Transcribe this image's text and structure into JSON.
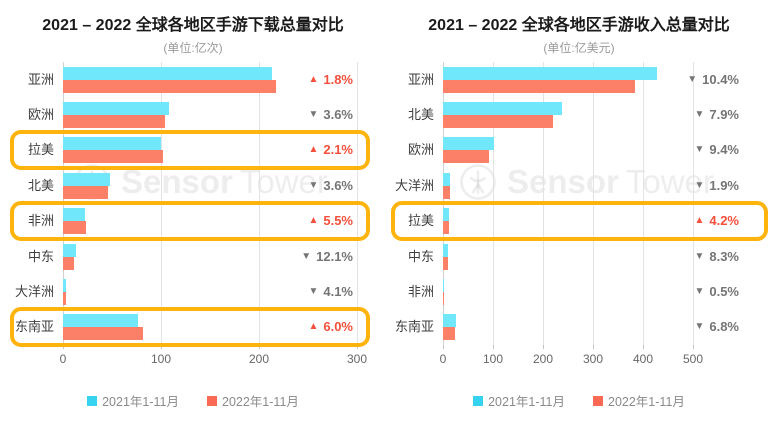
{
  "colors": {
    "up": "#F4503C",
    "down": "#757575",
    "highlight": "#FFB40D",
    "bar_2021": "#70E7FA",
    "bar_2022": "#FC8067",
    "legend_2021": "#35D3F0",
    "legend_2022": "#F96953"
  },
  "watermark": {
    "sensor": "Sensor",
    "tower": "Tower"
  },
  "legend": {
    "items": [
      {
        "label": "2021年1-11月",
        "color": "#35D3F0"
      },
      {
        "label": "2022年1-11月",
        "color": "#F96953"
      }
    ]
  },
  "chart_data": [
    {
      "type": "bar",
      "orientation": "horizontal",
      "title": "2021 – 2022 全球各地区手游下载总量对比",
      "subtitle": "(单位:亿次)",
      "unit": "亿次",
      "categories": [
        "亚洲",
        "欧洲",
        "拉美",
        "北美",
        "非洲",
        "中东",
        "大洋洲",
        "东南亚"
      ],
      "series": [
        {
          "name": "2021年1-11月",
          "color": "#70E7FA",
          "values": [
            213,
            108,
            100,
            48,
            22,
            13,
            3,
            77
          ]
        },
        {
          "name": "2022年1-11月",
          "color": "#FC8067",
          "values": [
            217,
            104,
            102,
            46,
            23.2,
            11.4,
            2.9,
            81.6
          ]
        }
      ],
      "changes": [
        {
          "direction": "up",
          "value": "1.8%"
        },
        {
          "direction": "down",
          "value": "3.6%"
        },
        {
          "direction": "up",
          "value": "2.1%"
        },
        {
          "direction": "down",
          "value": "3.6%"
        },
        {
          "direction": "up",
          "value": "5.5%"
        },
        {
          "direction": "down",
          "value": "12.1%"
        },
        {
          "direction": "down",
          "value": "4.1%"
        },
        {
          "direction": "up",
          "value": "6.0%"
        }
      ],
      "highlighted_rows": [
        2,
        4,
        7
      ],
      "xlim": [
        0,
        300
      ],
      "xticks": [
        0,
        100,
        200,
        300
      ],
      "grid": true,
      "legend_position": "bottom"
    },
    {
      "type": "bar",
      "orientation": "horizontal",
      "title": "2021 – 2022 全球各地区手游收入总量对比",
      "subtitle": "(单位:亿美元)",
      "unit": "亿美元",
      "categories": [
        "亚洲",
        "北美",
        "欧洲",
        "大洋洲",
        "拉美",
        "中东",
        "非洲",
        "东南亚"
      ],
      "series": [
        {
          "name": "2021年1-11月",
          "color": "#70E7FA",
          "values": [
            428,
            238,
            101,
            14,
            11.2,
            10.6,
            1,
            25.2
          ]
        },
        {
          "name": "2022年1-11月",
          "color": "#FC8067",
          "values": [
            384,
            219,
            91,
            13.7,
            11.7,
            9.7,
            1,
            23.5
          ]
        }
      ],
      "changes": [
        {
          "direction": "down",
          "value": "10.4%"
        },
        {
          "direction": "down",
          "value": "7.9%"
        },
        {
          "direction": "down",
          "value": "9.4%"
        },
        {
          "direction": "down",
          "value": "1.9%"
        },
        {
          "direction": "up",
          "value": "4.2%"
        },
        {
          "direction": "down",
          "value": "8.3%"
        },
        {
          "direction": "down",
          "value": "0.5%"
        },
        {
          "direction": "down",
          "value": "6.8%"
        }
      ],
      "highlighted_rows": [
        4
      ],
      "xlim": [
        0,
        500
      ],
      "xticks": [
        0,
        100,
        200,
        300,
        400,
        500
      ],
      "grid": true,
      "legend_position": "bottom"
    }
  ]
}
